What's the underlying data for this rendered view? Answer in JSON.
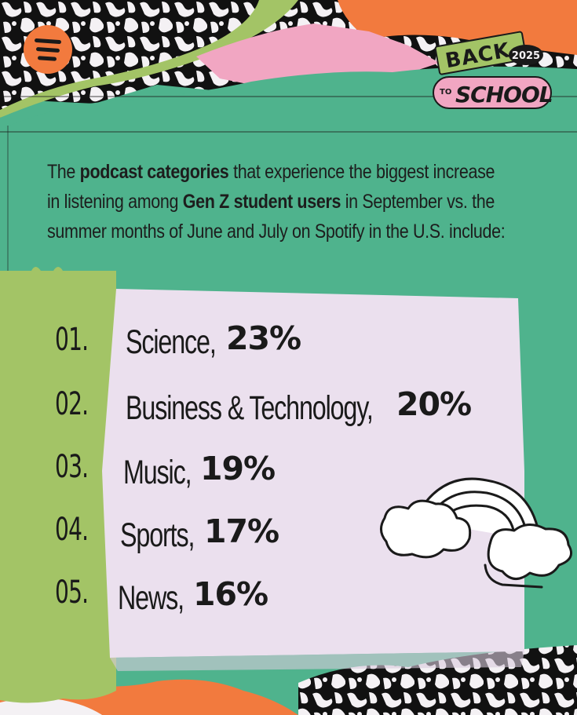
{
  "brand": {
    "icon": "spotify-icon"
  },
  "badge": {
    "line1": "BACK",
    "year": "2025",
    "to": "TO",
    "line2": "SCHOOL"
  },
  "intro": {
    "p1": "The ",
    "b1": "podcast categories",
    "p2": " that experience the biggest increase",
    "p3": "in listening among ",
    "b2": "Gen Z student users",
    "p4": " in September vs. the",
    "p5": "summer months of June and July on Spotify in the U.S. include:"
  },
  "chart_data": {
    "type": "table",
    "rows": [
      {
        "rank": "01.",
        "category": "Science,",
        "percent": "23%"
      },
      {
        "rank": "02.",
        "category": "Business & Technology,",
        "percent": "20%"
      },
      {
        "rank": "03.",
        "category": "Music,",
        "percent": "19%"
      },
      {
        "rank": "04.",
        "category": "Sports,",
        "percent": "17%"
      },
      {
        "rank": "05.",
        "category": "News,",
        "percent": "16%"
      }
    ]
  },
  "colors": {
    "green": "#4fb38d",
    "orange": "#f27a3e",
    "pink": "#f1a6c2",
    "lime": "#a3c466",
    "paper": "#ebe0ee",
    "ink": "#1a1a1a"
  }
}
